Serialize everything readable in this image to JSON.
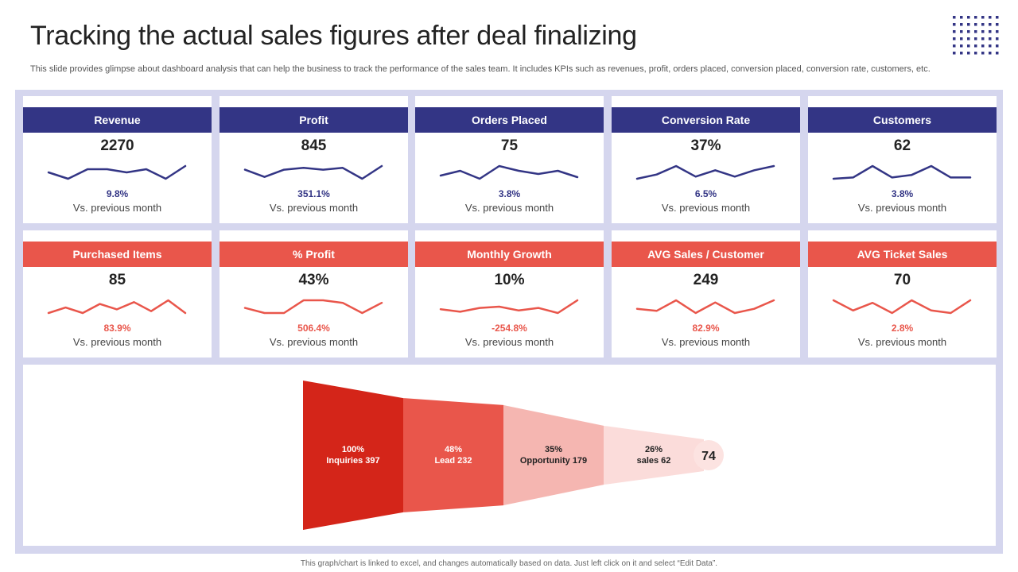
{
  "title": "Tracking the actual sales figures after deal finalizing",
  "subtitle": "This slide provides glimpse about dashboard analysis that can help the business to track the performance of the sales team. It includes KPIs such as revenues, profit, orders placed, conversion placed, conversion rate, customers, etc.",
  "footer": "This graph/chart is linked to excel, and changes automatically based on data. Just left click on it and select “Edit Data”.",
  "colors": {
    "navy": "#333585",
    "coral": "#e9564b",
    "board": "#d5d6ee"
  },
  "kpi_rows": [
    {
      "theme": "blue",
      "cards": [
        {
          "label": "Revenue",
          "value": "2270",
          "change": "9.8%",
          "note": "Vs. previous  month",
          "trend": [
            5,
            3,
            6,
            6,
            5,
            6,
            3,
            7
          ]
        },
        {
          "label": "Profit",
          "value": "845",
          "change": "351.1%",
          "note": "Vs. previous  month",
          "trend": [
            6,
            2,
            6,
            7,
            6,
            7,
            1,
            8
          ]
        },
        {
          "label": "Orders Placed",
          "value": "75",
          "change": "3.8%",
          "note": "Vs. previous  month",
          "trend": [
            3,
            6,
            1,
            9,
            6,
            4,
            6,
            2
          ]
        },
        {
          "label": "Conversion Rate",
          "value": "37%",
          "change": "6.5%",
          "note": "Vs. previous  month",
          "trend": [
            2,
            4,
            8,
            3,
            6,
            3,
            6,
            8
          ]
        },
        {
          "label": "Customers",
          "value": "62",
          "change": "3.8%",
          "note": "Vs. previous  month",
          "trend": [
            2,
            3,
            12,
            3,
            5,
            12,
            3,
            3
          ]
        }
      ]
    },
    {
      "theme": "red",
      "cards": [
        {
          "label": "Purchased Items",
          "value": "85",
          "change": "83.9%",
          "note": "Vs. previous  month",
          "trend": [
            2,
            5,
            2,
            7,
            4,
            8,
            3,
            9,
            2
          ]
        },
        {
          "label": "% Profit",
          "value": "43%",
          "change": "506.4%",
          "note": "Vs. previous  month",
          "trend": [
            3,
            1,
            1,
            6,
            6,
            5,
            1,
            5
          ]
        },
        {
          "label": "Monthly Growth",
          "value": "10%",
          "change": "-254.8%",
          "note": "Vs. previous  month",
          "trend": [
            3,
            1,
            4,
            5,
            2,
            4,
            0,
            10
          ]
        },
        {
          "label": "AVG Sales / Customer",
          "value": "249",
          "change": "82.9%",
          "note": "Vs. previous  month",
          "trend": [
            3,
            2,
            7,
            1,
            6,
            1,
            3,
            7
          ]
        },
        {
          "label": "AVG Ticket Sales",
          "value": "70",
          "change": "2.8%",
          "note": "Vs. previous  month",
          "trend": [
            6,
            2,
            5,
            1,
            6,
            2,
            1,
            6
          ]
        }
      ]
    }
  ],
  "chart_data": {
    "type": "funnel",
    "stages": [
      {
        "percent": "100%",
        "label": "Inquiries 397",
        "value": 397,
        "color": "#d42519",
        "text_color": "#ffffff"
      },
      {
        "percent": "48%",
        "label": "Lead 232",
        "value": 232,
        "color": "#e9564b",
        "text_color": "#ffffff"
      },
      {
        "percent": "35%",
        "label": "Opportunity 179",
        "value": 179,
        "color": "#f5b6b1",
        "text_color": "#222222"
      },
      {
        "percent": "26%",
        "label": "sales 62",
        "value": 62,
        "color": "#fbdcda",
        "text_color": "#222222"
      }
    ],
    "end_value": "74",
    "end_color": "#fce3e1"
  }
}
